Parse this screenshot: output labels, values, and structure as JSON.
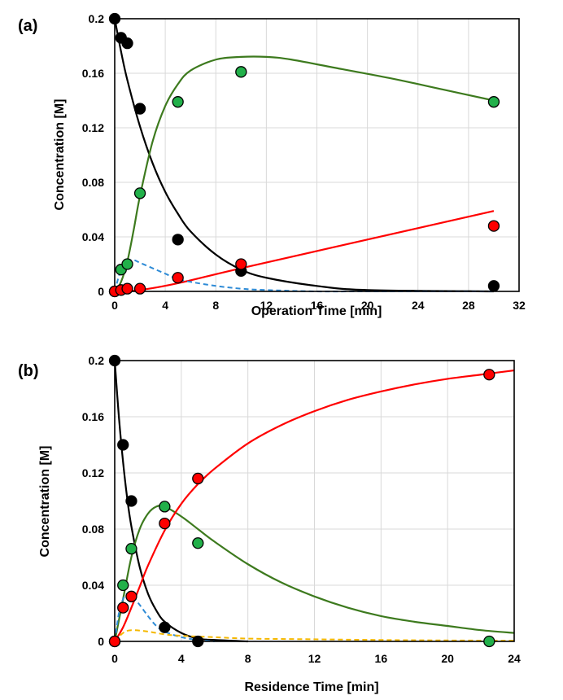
{
  "chart_data": [
    {
      "type": "scatter",
      "panel_label": "(a)",
      "xlabel": "Operation Time [min]",
      "ylabel": "Concentration [M]",
      "xlim": [
        0,
        32
      ],
      "ylim": [
        0,
        0.2
      ],
      "xticks": [
        "0",
        "4",
        "8",
        "12",
        "16",
        "20",
        "24",
        "28",
        "32"
      ],
      "yticks": [
        "0",
        "0.04",
        "0.08",
        "0.12",
        "0.16",
        "0.2"
      ],
      "grid": true,
      "legend": "none",
      "series": [
        {
          "kind": "points",
          "color": "#000000",
          "x": [
            0,
            0.5,
            1,
            2,
            5,
            10,
            30
          ],
          "y": [
            0.2,
            0.186,
            0.182,
            0.134,
            0.038,
            0.015,
            0.004
          ]
        },
        {
          "kind": "points",
          "color": "#22b04a",
          "x": [
            0,
            0.5,
            1,
            2,
            5,
            10,
            30
          ],
          "y": [
            0,
            0.016,
            0.02,
            0.072,
            0.139,
            0.161,
            0.139
          ]
        },
        {
          "kind": "points",
          "color": "#ff0000",
          "x": [
            0,
            0.5,
            1,
            2,
            5,
            10,
            30
          ],
          "y": [
            0,
            0.001,
            0.002,
            0.002,
            0.01,
            0.02,
            0.048
          ]
        },
        {
          "kind": "line",
          "color": "#000000",
          "dash": false,
          "x": [
            0,
            0.5,
            1,
            2,
            3,
            4,
            5,
            6,
            8,
            10,
            12,
            16,
            20,
            30
          ],
          "y": [
            0.2,
            0.176,
            0.155,
            0.121,
            0.094,
            0.073,
            0.057,
            0.044,
            0.027,
            0.016,
            0.01,
            0.004,
            0.001,
            0
          ]
        },
        {
          "kind": "line",
          "color": "#3d7a1e",
          "dash": false,
          "x": [
            0,
            0.5,
            1,
            1.5,
            2,
            3,
            4,
            5,
            6,
            8,
            10,
            12,
            14,
            18,
            22,
            26,
            30
          ],
          "y": [
            0,
            0.007,
            0.022,
            0.045,
            0.07,
            0.11,
            0.136,
            0.152,
            0.162,
            0.17,
            0.172,
            0.172,
            0.17,
            0.163,
            0.156,
            0.148,
            0.14
          ]
        },
        {
          "kind": "line",
          "color": "#ff0000",
          "dash": false,
          "x": [
            0,
            2,
            5,
            10,
            20,
            30
          ],
          "y": [
            0,
            0.001,
            0.006,
            0.017,
            0.038,
            0.059
          ]
        },
        {
          "kind": "line",
          "color": "#2e8bd6",
          "dash": true,
          "x": [
            0,
            0.5,
            1,
            1.5,
            2,
            3,
            4,
            5,
            6,
            8,
            10,
            12,
            16,
            20,
            30
          ],
          "y": [
            0,
            0.016,
            0.022,
            0.023,
            0.021,
            0.017,
            0.013,
            0.009,
            0.007,
            0.004,
            0.002,
            0.001,
            0,
            0,
            0
          ]
        }
      ]
    },
    {
      "type": "scatter",
      "panel_label": "(b)",
      "xlabel": "Residence Time [min]",
      "ylabel": "Concentration [M]",
      "xlim": [
        0,
        24
      ],
      "ylim": [
        0,
        0.2
      ],
      "xticks": [
        "0",
        "4",
        "8",
        "12",
        "16",
        "20",
        "24"
      ],
      "yticks": [
        "0",
        "0.04",
        "0.08",
        "0.12",
        "0.16",
        "0.2"
      ],
      "grid": true,
      "legend": "none",
      "series": [
        {
          "kind": "points",
          "color": "#000000",
          "x": [
            0,
            0.5,
            1,
            3,
            5
          ],
          "y": [
            0.2,
            0.14,
            0.1,
            0.01,
            0
          ]
        },
        {
          "kind": "points",
          "color": "#22b04a",
          "x": [
            0,
            0.5,
            1,
            3,
            5,
            22.5
          ],
          "y": [
            0,
            0.04,
            0.066,
            0.096,
            0.07,
            0
          ]
        },
        {
          "kind": "points",
          "color": "#ff0000",
          "x": [
            0,
            0.5,
            1,
            3,
            5,
            22.5
          ],
          "y": [
            0,
            0.024,
            0.032,
            0.084,
            0.116,
            0.19
          ]
        },
        {
          "kind": "line",
          "color": "#000000",
          "dash": false,
          "x": [
            0,
            0.25,
            0.5,
            0.75,
            1,
            1.5,
            2,
            2.5,
            3,
            4,
            5,
            6,
            8
          ],
          "y": [
            0.2,
            0.16,
            0.128,
            0.102,
            0.082,
            0.053,
            0.034,
            0.022,
            0.014,
            0.006,
            0.002,
            0.001,
            0
          ]
        },
        {
          "kind": "line",
          "color": "#3d7a1e",
          "dash": false,
          "x": [
            0,
            0.5,
            1,
            1.5,
            2,
            2.5,
            3,
            4,
            5,
            6,
            8,
            10,
            12,
            14,
            16,
            18,
            20,
            22,
            24
          ],
          "y": [
            0,
            0.03,
            0.06,
            0.08,
            0.091,
            0.096,
            0.096,
            0.089,
            0.08,
            0.071,
            0.055,
            0.042,
            0.032,
            0.024,
            0.018,
            0.014,
            0.011,
            0.008,
            0.006
          ]
        },
        {
          "kind": "line",
          "color": "#ff0000",
          "dash": false,
          "x": [
            0,
            0.5,
            1,
            1.5,
            2,
            3,
            4,
            5,
            6,
            8,
            10,
            12,
            14,
            16,
            18,
            20,
            22,
            24
          ],
          "y": [
            0,
            0.01,
            0.024,
            0.039,
            0.054,
            0.079,
            0.098,
            0.112,
            0.123,
            0.141,
            0.154,
            0.164,
            0.172,
            0.178,
            0.183,
            0.187,
            0.19,
            0.193
          ]
        },
        {
          "kind": "line",
          "color": "#2e8bd6",
          "dash": true,
          "x": [
            0,
            0.25,
            0.5,
            0.75,
            1,
            1.5,
            2,
            2.5,
            3,
            4,
            5,
            6
          ],
          "y": [
            0,
            0.02,
            0.03,
            0.034,
            0.033,
            0.026,
            0.018,
            0.011,
            0.007,
            0.003,
            0.001,
            0
          ]
        },
        {
          "kind": "line",
          "color": "#f5b800",
          "dash": true,
          "x": [
            0,
            0.5,
            1,
            2,
            3,
            4,
            6,
            8,
            12,
            16,
            20,
            24
          ],
          "y": [
            0,
            0.006,
            0.008,
            0.007,
            0.005,
            0.004,
            0.003,
            0.002,
            0.0015,
            0.001,
            0.0007,
            0.0005
          ]
        }
      ]
    }
  ]
}
